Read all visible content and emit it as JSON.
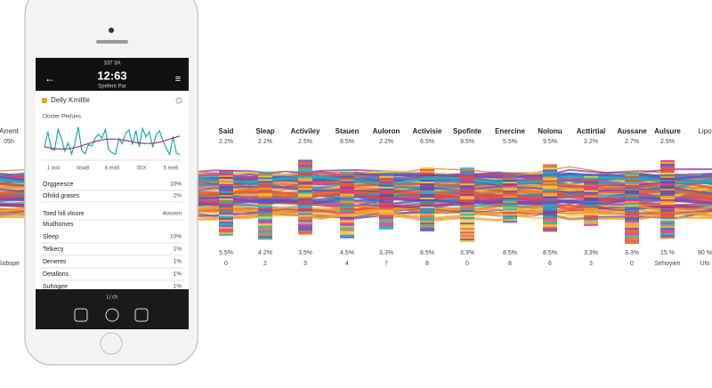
{
  "phone": {
    "status": "337 3A",
    "title": "12:63",
    "subtitle": "Spefent Par",
    "card_title": "Delly Kmiltle",
    "chart_label": "Oocler Pedues",
    "chart_x_labels": [
      "1 oox",
      "0ow8",
      "8 ma5",
      "00X",
      "5 me8"
    ],
    "rows_top": [
      {
        "label": "Orggeesce",
        "value": "10%"
      },
      {
        "label": "Ofolid grases",
        "value": "2%"
      }
    ],
    "section": {
      "label": "Toed hill vloore",
      "value": "4ooosn"
    },
    "section_sub": "Mudhomes",
    "rows": [
      {
        "label": "Sleep",
        "value": "10%"
      },
      {
        "label": "Telkecy",
        "value": "1%"
      },
      {
        "label": "Deneres",
        "value": "1%"
      },
      {
        "label": "Detallons",
        "value": "1%"
      },
      {
        "label": "Suhogee",
        "value": "1%"
      }
    ],
    "footer": "Li:ch"
  },
  "background": {
    "left": {
      "header": "Arrent",
      "top": "05h",
      "bottom": "Sobope"
    },
    "right": {
      "header": "Lipo",
      "top": "90 %",
      "bottom": "Ufo"
    },
    "columns": [
      {
        "header": "Said",
        "top": "2.2%",
        "mid": "5.5%",
        "bottom": "0"
      },
      {
        "header": "Sleap",
        "top": "2.2%",
        "mid": "4.2%",
        "bottom": "2"
      },
      {
        "header": "Activiley",
        "top": "2.5%",
        "mid": "3.5%",
        "bottom": "3"
      },
      {
        "header": "Stauen",
        "top": "8.5%",
        "mid": "4.5%",
        "bottom": "4"
      },
      {
        "header": "Auloron",
        "top": "2.2%",
        "mid": "3.3%",
        "bottom": "7"
      },
      {
        "header": "Activisie",
        "top": "6.5%",
        "mid": "8.5%",
        "bottom": "8"
      },
      {
        "header": "Spofinte",
        "top": "9.5%",
        "mid": "3.3%",
        "bottom": "0"
      },
      {
        "header": "Enercine",
        "top": "5.5%",
        "mid": "8.5%",
        "bottom": "8"
      },
      {
        "header": "Nolonu",
        "top": "9.5%",
        "mid": "8.5%",
        "bottom": "6"
      },
      {
        "header": "Acttirtial",
        "top": "2.2%",
        "mid": "3.3%",
        "bottom": "3"
      },
      {
        "header": "Aussane",
        "top": "2.7%",
        "mid": "3.3%",
        "bottom": "0"
      },
      {
        "header": "Aulsure",
        "top": "2.5%",
        "mid": "15 %",
        "bottom": "Sehoyien"
      }
    ]
  }
}
